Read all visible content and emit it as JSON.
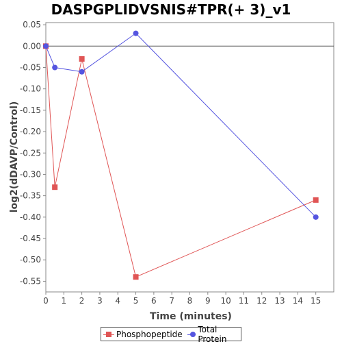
{
  "chart_data": {
    "type": "line",
    "title": "DASPGPLIDVSNIS#TPR(+ 3)_v1",
    "xlabel": "Time (minutes)",
    "ylabel": "log2(dDAVP/Control)",
    "xlim": [
      0,
      16
    ],
    "ylim": [
      -0.575,
      0.055
    ],
    "x_ticks": [
      0,
      1,
      2,
      3,
      4,
      5,
      6,
      7,
      8,
      9,
      10,
      11,
      12,
      13,
      14,
      15
    ],
    "y_ticks": [
      0.05,
      0.0,
      -0.05,
      -0.1,
      -0.15,
      -0.2,
      -0.25,
      -0.3,
      -0.35,
      -0.4,
      -0.45,
      -0.5,
      -0.55
    ],
    "x_tick_labels": [
      "0",
      "1",
      "2",
      "3",
      "4",
      "5",
      "6",
      "7",
      "8",
      "9",
      "10",
      "11",
      "12",
      "13",
      "14",
      "15"
    ],
    "y_tick_labels": [
      "0.05",
      "0.00",
      "-0.05",
      "-0.10",
      "-0.15",
      "-0.20",
      "-0.25",
      "-0.30",
      "-0.35",
      "-0.40",
      "-0.45",
      "-0.50",
      "-0.55"
    ],
    "reference_line_y": 0,
    "grid": false,
    "legend_position": "bottom",
    "series": [
      {
        "name": "Phosphopeptide",
        "color": "#e05555",
        "marker": "square",
        "points": [
          [
            0,
            0.0
          ],
          [
            0.5,
            -0.33
          ],
          [
            2,
            -0.03
          ],
          [
            5,
            -0.54
          ],
          [
            15,
            -0.36
          ]
        ]
      },
      {
        "name": "Total Protein",
        "color": "#5555e0",
        "marker": "circle",
        "points": [
          [
            0,
            0.0
          ],
          [
            0.5,
            -0.05
          ],
          [
            2,
            -0.06
          ],
          [
            5,
            0.03
          ],
          [
            15,
            -0.4
          ]
        ]
      }
    ]
  }
}
